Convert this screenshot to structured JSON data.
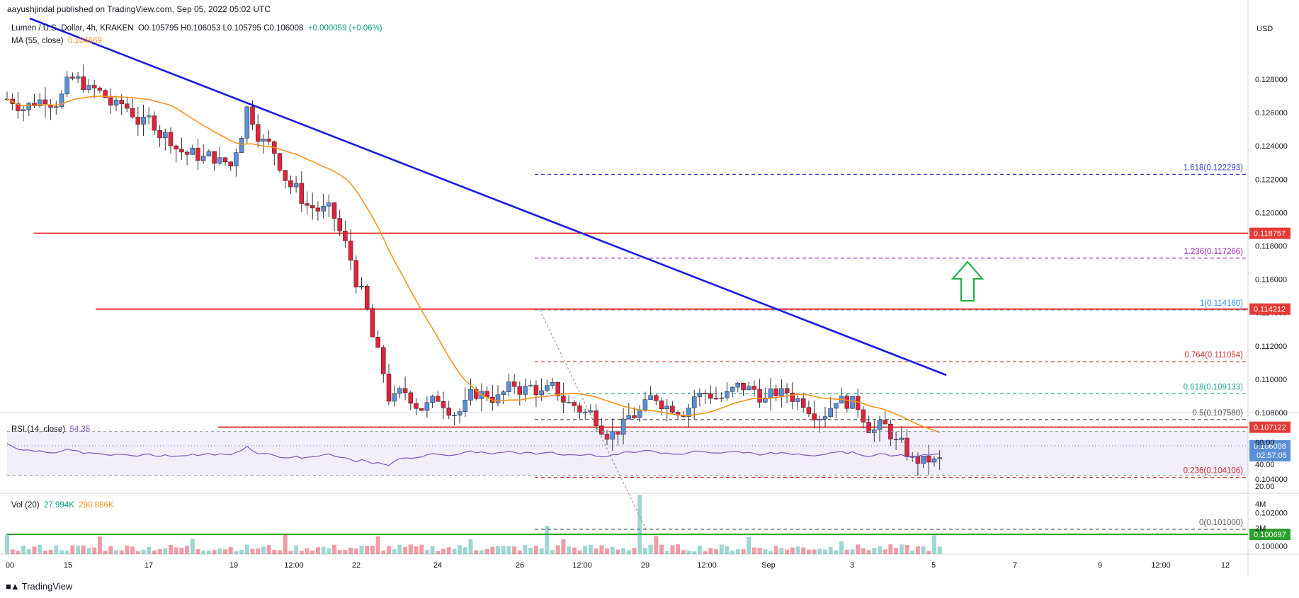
{
  "header": {
    "publisher": "aayushjindal published on TradingView.com, Sep 05, 2022 05:02 UTC"
  },
  "legend": {
    "symbol": "Lumen / U.S. Dollar, 4h, KRAKEN",
    "ohlc": "O0.105795 H0.106053 L0.105795 C0.106008",
    "change": "+0.000059 (+0.06%)",
    "ma_label": "MA (55, close)",
    "ma_value": "0.104669"
  },
  "price_axis": {
    "currency": "USD",
    "ticks": [
      "0.128000",
      "0.126000",
      "0.124000",
      "0.122000",
      "0.120000",
      "0.118000",
      "0.116000",
      "0.114000",
      "0.112000",
      "0.110000",
      "0.108000",
      "0.106000",
      "0.104000",
      "0.102000",
      "0.100000"
    ]
  },
  "badges": {
    "r1": "0.118757",
    "r2": "0.114212",
    "r3": "0.107122",
    "last_price": "0.106008",
    "countdown": "02:57:05",
    "support": "0.100697"
  },
  "fib_levels": [
    {
      "label": "1.618(0.122293)",
      "color": "#3f3fd6"
    },
    {
      "label": "1.236(0.117266)",
      "color": "#9c27b0"
    },
    {
      "label": "1(0.114160)",
      "color": "#2196f3"
    },
    {
      "label": "0.764(0.111054)",
      "color": "#d32f2f"
    },
    {
      "label": "0.618(0.109133)",
      "color": "#26a69a"
    },
    {
      "label": "0.5(0.107580)",
      "color": "#555555"
    },
    {
      "label": "0.236(0.104106)",
      "color": "#d32f2f"
    },
    {
      "label": "0(0.101000)",
      "color": "#555555"
    }
  ],
  "rsi": {
    "label": "RSI (14, close)",
    "value": "54.35",
    "ticks": [
      "60.00",
      "40.00",
      "20.00"
    ]
  },
  "volume": {
    "label": "Vol (20)",
    "v1": "27.994K",
    "v2": "290.886K",
    "ticks": [
      "4M",
      "2M"
    ]
  },
  "time_axis": {
    "labels": [
      "00",
      "15",
      "17",
      "19",
      "12:00",
      "22",
      "24",
      "26",
      "12:00",
      "29",
      "12:00",
      "Sep",
      "3",
      "5",
      "7",
      "9",
      "12:00",
      "12"
    ]
  },
  "footer": {
    "brand": "TradingView"
  },
  "colors": {
    "up": "#26a69a",
    "up_body": "#5b8fd6",
    "down": "#e0223b",
    "trendline": "#1a1adf",
    "ma": "#f7931a",
    "resistance": "#e53935",
    "support": "#2ca02c",
    "rsi": "#7e57c2",
    "arrow": "#22b24c"
  }
}
